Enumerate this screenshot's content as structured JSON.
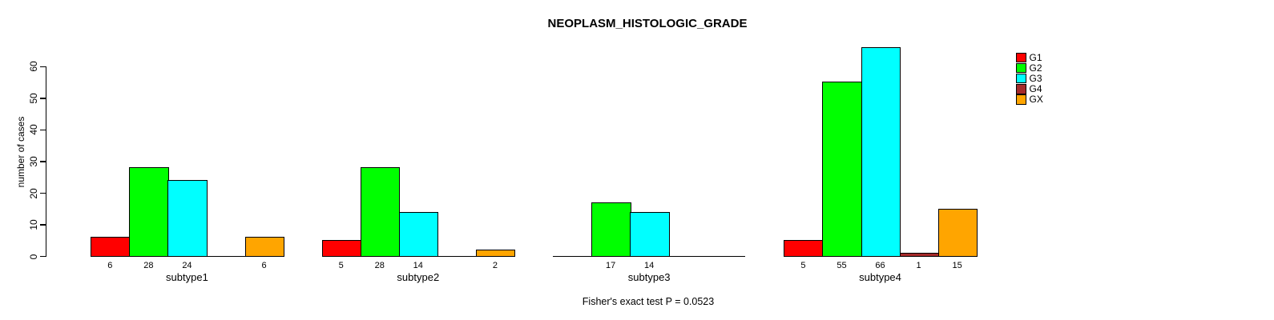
{
  "chart_data": {
    "type": "bar",
    "title": "NEOPLASM_HISTOLOGIC_GRADE",
    "ylabel": "number of cases",
    "xlabel": "",
    "yticks": [
      0,
      10,
      20,
      30,
      40,
      50,
      60
    ],
    "ylim": [
      0,
      66
    ],
    "grid": false,
    "legend_position": "right",
    "categories": [
      "subtype1",
      "subtype2",
      "subtype3",
      "subtype4"
    ],
    "series": [
      {
        "name": "G1",
        "color": "#FF0000",
        "values": [
          6,
          5,
          null,
          5
        ]
      },
      {
        "name": "G2",
        "color": "#00FF00",
        "values": [
          28,
          28,
          17,
          55
        ]
      },
      {
        "name": "G3",
        "color": "#00FFFF",
        "values": [
          24,
          14,
          14,
          66
        ]
      },
      {
        "name": "G4",
        "color": "#A52A2A",
        "values": [
          null,
          null,
          null,
          1
        ]
      },
      {
        "name": "GX",
        "color": "#FFA500",
        "values": [
          6,
          2,
          null,
          15
        ]
      }
    ],
    "annotation": "Fisher's exact test P = 0.0523"
  }
}
